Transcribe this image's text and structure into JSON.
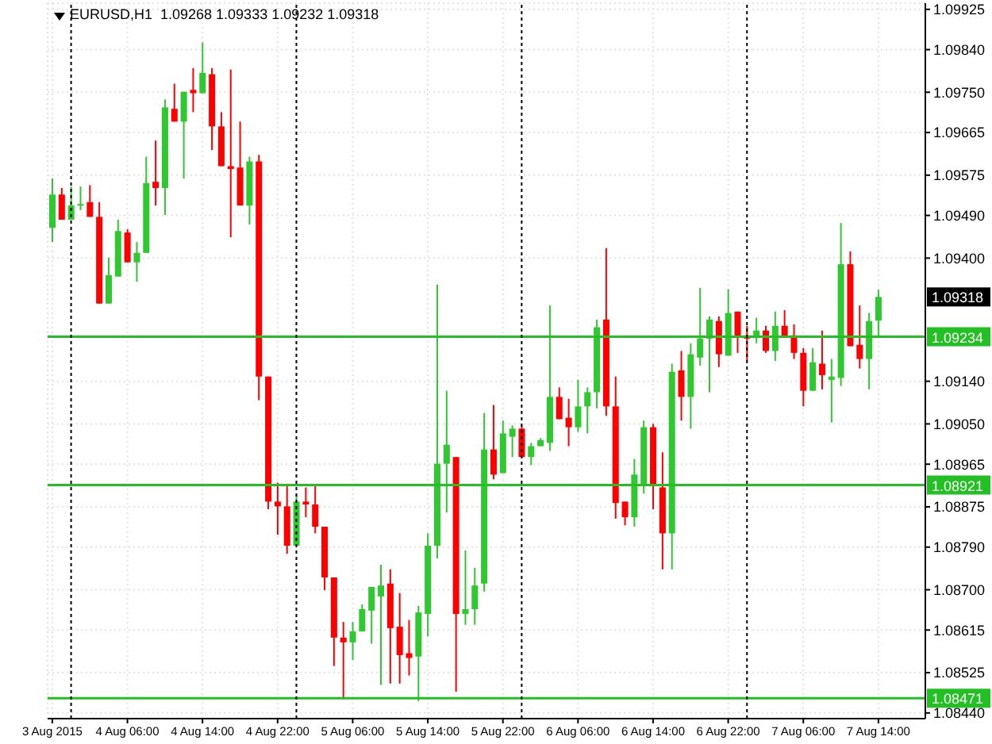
{
  "chart_data": {
    "type": "candlestick",
    "title": "EURUSD,H1  1.09268 1.09333 1.09232 1.09318",
    "x": [
      "2015-08-03T22:00",
      "2015-08-03T23:00",
      "2015-08-04T00:00",
      "2015-08-04T01:00",
      "2015-08-04T02:00",
      "2015-08-04T03:00",
      "2015-08-04T04:00",
      "2015-08-04T05:00",
      "2015-08-04T06:00",
      "2015-08-04T07:00",
      "2015-08-04T08:00",
      "2015-08-04T09:00",
      "2015-08-04T10:00",
      "2015-08-04T11:00",
      "2015-08-04T12:00",
      "2015-08-04T13:00",
      "2015-08-04T14:00",
      "2015-08-04T15:00",
      "2015-08-04T16:00",
      "2015-08-04T17:00",
      "2015-08-04T18:00",
      "2015-08-04T19:00",
      "2015-08-04T20:00",
      "2015-08-04T21:00",
      "2015-08-04T22:00",
      "2015-08-04T23:00",
      "2015-08-05T00:00",
      "2015-08-05T01:00",
      "2015-08-05T02:00",
      "2015-08-05T03:00",
      "2015-08-05T04:00",
      "2015-08-05T05:00",
      "2015-08-05T06:00",
      "2015-08-05T07:00",
      "2015-08-05T08:00",
      "2015-08-05T09:00",
      "2015-08-05T10:00",
      "2015-08-05T11:00",
      "2015-08-05T12:00",
      "2015-08-05T13:00",
      "2015-08-05T14:00",
      "2015-08-05T15:00",
      "2015-08-05T16:00",
      "2015-08-05T17:00",
      "2015-08-05T18:00",
      "2015-08-05T19:00",
      "2015-08-05T20:00",
      "2015-08-05T21:00",
      "2015-08-05T22:00",
      "2015-08-05T23:00",
      "2015-08-06T00:00",
      "2015-08-06T01:00",
      "2015-08-06T02:00",
      "2015-08-06T03:00",
      "2015-08-06T04:00",
      "2015-08-06T05:00",
      "2015-08-06T06:00",
      "2015-08-06T07:00",
      "2015-08-06T08:00",
      "2015-08-06T09:00",
      "2015-08-06T10:00",
      "2015-08-06T11:00",
      "2015-08-06T12:00",
      "2015-08-06T13:00",
      "2015-08-06T14:00",
      "2015-08-06T15:00",
      "2015-08-06T16:00",
      "2015-08-06T17:00",
      "2015-08-06T18:00",
      "2015-08-06T19:00",
      "2015-08-06T20:00",
      "2015-08-06T21:00",
      "2015-08-06T22:00",
      "2015-08-06T23:00",
      "2015-08-07T00:00",
      "2015-08-07T01:00",
      "2015-08-07T02:00",
      "2015-08-07T03:00",
      "2015-08-07T04:00",
      "2015-08-07T05:00",
      "2015-08-07T06:00",
      "2015-08-07T07:00",
      "2015-08-07T08:00",
      "2015-08-07T09:00",
      "2015-08-07T10:00",
      "2015-08-07T11:00",
      "2015-08-07T12:00",
      "2015-08-07T13:00",
      "2015-08-07T14:00"
    ],
    "ohlc": [
      [
        1.09464,
        1.09568,
        1.09434,
        1.09534
      ],
      [
        1.09534,
        1.09548,
        1.09481,
        1.09481
      ],
      [
        1.09481,
        1.09551,
        1.09481,
        1.09511
      ],
      [
        1.09511,
        1.09551,
        1.09501,
        1.09514
      ],
      [
        1.09518,
        1.09554,
        1.09487,
        1.09487
      ],
      [
        1.09487,
        1.09518,
        1.09304,
        1.09304
      ],
      [
        1.09304,
        1.09401,
        1.09304,
        1.09364
      ],
      [
        1.09361,
        1.09481,
        1.09361,
        1.09457
      ],
      [
        1.09454,
        1.09461,
        1.09391,
        1.09391
      ],
      [
        1.09391,
        1.09434,
        1.0935,
        1.09411
      ],
      [
        1.09411,
        1.09614,
        1.09411,
        1.09558
      ],
      [
        1.09561,
        1.09648,
        1.09511,
        1.09548
      ],
      [
        1.09548,
        1.09735,
        1.09491,
        1.09718
      ],
      [
        1.09715,
        1.09768,
        1.09688,
        1.09688
      ],
      [
        1.09688,
        1.09751,
        1.09568,
        1.09751
      ],
      [
        1.09755,
        1.09801,
        1.09708,
        1.09748
      ],
      [
        1.09748,
        1.09855,
        1.09748,
        1.09791
      ],
      [
        1.09788,
        1.09801,
        1.09628,
        1.09678
      ],
      [
        1.09678,
        1.09708,
        1.09594,
        1.09594
      ],
      [
        1.09594,
        1.09798,
        1.09444,
        1.09588
      ],
      [
        1.09591,
        1.09688,
        1.09511,
        1.09511
      ],
      [
        1.09511,
        1.09614,
        1.09471,
        1.09604
      ],
      [
        1.09604,
        1.09618,
        1.091,
        1.0915
      ],
      [
        1.0915,
        1.0915,
        1.0887,
        1.08886
      ],
      [
        1.08886,
        1.08926,
        1.08816,
        1.08876
      ],
      [
        1.08876,
        1.0892,
        1.08776,
        1.08793
      ],
      [
        1.08793,
        1.089,
        1.08793,
        1.08886
      ],
      [
        1.08886,
        1.08916,
        1.08853,
        1.0888
      ],
      [
        1.0888,
        1.08923,
        1.08819,
        1.08833
      ],
      [
        1.08833,
        1.08833,
        1.08699,
        1.08726
      ],
      [
        1.08726,
        1.08726,
        1.08539,
        1.08599
      ],
      [
        1.08599,
        1.08632,
        1.08469,
        1.08589
      ],
      [
        1.08589,
        1.08632,
        1.08552,
        1.08612
      ],
      [
        1.08612,
        1.08669,
        1.08612,
        1.08659
      ],
      [
        1.08656,
        1.08706,
        1.08586,
        1.08706
      ],
      [
        1.08686,
        1.08753,
        1.08499,
        1.08709
      ],
      [
        1.08713,
        1.08743,
        1.08502,
        1.08619
      ],
      [
        1.08622,
        1.08693,
        1.08502,
        1.08562
      ],
      [
        1.08566,
        1.08636,
        1.08519,
        1.08556
      ],
      [
        1.08559,
        1.08666,
        1.08465,
        1.08652
      ],
      [
        1.08649,
        1.08819,
        1.08602,
        1.08793
      ],
      [
        1.08793,
        1.09344,
        1.08766,
        1.08966
      ],
      [
        1.08966,
        1.0912,
        1.08863,
        1.09006
      ],
      [
        1.0898,
        1.0898,
        1.08485,
        1.08649
      ],
      [
        1.08649,
        1.08783,
        1.08626,
        1.08659
      ],
      [
        1.08659,
        1.08746,
        1.08626,
        1.08709
      ],
      [
        1.08713,
        1.09073,
        1.08696,
        1.08996
      ],
      [
        1.08996,
        1.0909,
        1.08933,
        1.08943
      ],
      [
        1.08946,
        1.09057,
        1.08946,
        1.0903
      ],
      [
        1.09023,
        1.09047,
        1.0898,
        1.0904
      ],
      [
        1.0904,
        1.09047,
        1.0898,
        1.0898
      ],
      [
        1.0898,
        1.0901,
        1.08963,
        1.09003
      ],
      [
        1.09003,
        1.0902,
        1.09003,
        1.09016
      ],
      [
        1.0901,
        1.093,
        1.08993,
        1.09107
      ],
      [
        1.09107,
        1.09127,
        1.0906,
        1.0906
      ],
      [
        1.09063,
        1.09103,
        1.09003,
        1.09043
      ],
      [
        1.09043,
        1.09143,
        1.09033,
        1.09087
      ],
      [
        1.09087,
        1.09127,
        1.0903,
        1.09117
      ],
      [
        1.09117,
        1.0927,
        1.09083,
        1.09254
      ],
      [
        1.0927,
        1.09421,
        1.09067,
        1.09087
      ],
      [
        1.09087,
        1.0915,
        1.0885,
        1.08883
      ],
      [
        1.08886,
        1.08886,
        1.08836,
        1.08853
      ],
      [
        1.08853,
        1.08976,
        1.08833,
        1.08943
      ],
      [
        1.0892,
        1.09057,
        1.08903,
        1.09043
      ],
      [
        1.09043,
        1.0905,
        1.0887,
        1.0892
      ],
      [
        1.08916,
        1.0899,
        1.08743,
        1.08819
      ],
      [
        1.08819,
        1.09177,
        1.08743,
        1.0916
      ],
      [
        1.09163,
        1.09204,
        1.09057,
        1.09107
      ],
      [
        1.09107,
        1.0922,
        1.0904,
        1.09197
      ],
      [
        1.0919,
        1.09337,
        1.09173,
        1.0923
      ],
      [
        1.0923,
        1.09277,
        1.09117,
        1.0927
      ],
      [
        1.09267,
        1.09277,
        1.0917,
        1.09197
      ],
      [
        1.09194,
        1.09334,
        1.09194,
        1.09284
      ],
      [
        1.09287,
        1.09287,
        1.092,
        1.09234
      ],
      [
        1.09237,
        1.09257,
        1.09183,
        1.0923
      ],
      [
        1.09234,
        1.09274,
        1.0922,
        1.09247
      ],
      [
        1.09247,
        1.09257,
        1.092,
        1.09204
      ],
      [
        1.09204,
        1.09287,
        1.09183,
        1.09257
      ],
      [
        1.09257,
        1.0929,
        1.09234,
        1.09234
      ],
      [
        1.09237,
        1.0926,
        1.09187,
        1.092
      ],
      [
        1.092,
        1.0921,
        1.09087,
        1.0912
      ],
      [
        1.0912,
        1.0921,
        1.0912,
        1.0918
      ],
      [
        1.09177,
        1.09247,
        1.09123,
        1.09153
      ],
      [
        1.09143,
        1.09187,
        1.09053,
        1.0915
      ],
      [
        1.09147,
        1.09474,
        1.0913,
        1.09387
      ],
      [
        1.09387,
        1.09414,
        1.09214,
        1.09214
      ],
      [
        1.09217,
        1.093,
        1.09167,
        1.09187
      ],
      [
        1.09187,
        1.09284,
        1.09123,
        1.09267
      ],
      [
        1.09268,
        1.09333,
        1.09232,
        1.09318
      ]
    ],
    "colors": [
      "#30c830",
      "#ff0000",
      "#30c830",
      "#30c830",
      "#ff0000",
      "#ff0000",
      "#30c830",
      "#30c830",
      "#ff0000",
      "#30c830",
      "#30c830",
      "#ff0000",
      "#30c830",
      "#ff0000",
      "#30c830",
      "#ff0000",
      "#30c830",
      "#ff0000",
      "#ff0000",
      "#ff0000",
      "#ff0000",
      "#30c830",
      "#ff0000",
      "#ff0000",
      "#ff0000",
      "#ff0000",
      "#30c830",
      "#ff0000",
      "#ff0000",
      "#ff0000",
      "#ff0000",
      "#ff0000",
      "#30c830",
      "#30c830",
      "#30c830",
      "#30c830",
      "#ff0000",
      "#ff0000",
      "#ff0000",
      "#30c830",
      "#30c830",
      "#30c830",
      "#30c830",
      "#ff0000",
      "#30c830",
      "#30c830",
      "#30c830",
      "#ff0000",
      "#30c830",
      "#30c830",
      "#ff0000",
      "#30c830",
      "#30c830",
      "#30c830",
      "#ff0000",
      "#ff0000",
      "#30c830",
      "#30c830",
      "#30c830",
      "#ff0000",
      "#ff0000",
      "#ff0000",
      "#30c830",
      "#30c830",
      "#ff0000",
      "#ff0000",
      "#30c830",
      "#ff0000",
      "#30c830",
      "#30c830",
      "#30c830",
      "#ff0000",
      "#30c830",
      "#ff0000",
      "#ff0000",
      "#30c830",
      "#ff0000",
      "#30c830",
      "#ff0000",
      "#ff0000",
      "#ff0000",
      "#30c830",
      "#ff0000",
      "#30c830",
      "#30c830",
      "#ff0000",
      "#ff0000",
      "#30c830",
      "#30c830"
    ],
    "xlim": [
      "2015-08-03T21:30",
      "2015-08-07T19:00"
    ],
    "xticks": [
      {
        "value": "2015-08-03T22:00",
        "label": "3 Aug 2015"
      },
      {
        "value": "2015-08-04T06:00",
        "label": "4 Aug 06:00"
      },
      {
        "value": "2015-08-04T14:00",
        "label": "4 Aug 14:00"
      },
      {
        "value": "2015-08-04T22:00",
        "label": "4 Aug 22:00"
      },
      {
        "value": "2015-08-05T06:00",
        "label": "5 Aug 06:00"
      },
      {
        "value": "2015-08-05T14:00",
        "label": "5 Aug 14:00"
      },
      {
        "value": "2015-08-05T22:00",
        "label": "5 Aug 22:00"
      },
      {
        "value": "2015-08-06T06:00",
        "label": "6 Aug 06:00"
      },
      {
        "value": "2015-08-06T14:00",
        "label": "6 Aug 14:00"
      },
      {
        "value": "2015-08-06T22:00",
        "label": "6 Aug 22:00"
      },
      {
        "value": "2015-08-07T06:00",
        "label": "7 Aug 06:00"
      },
      {
        "value": "2015-08-07T14:00",
        "label": "7 Aug 14:00"
      }
    ],
    "ylim": [
      1.08428,
      1.09938
    ],
    "yticks": [
      1.09925,
      {
        "value": 1.0984,
        "label": "1.09840"
      },
      {
        "value": 1.0975,
        "label": "1.09750"
      },
      1.09665,
      1.09575,
      {
        "value": 1.0949,
        "label": "1.09490"
      },
      {
        "value": 1.094,
        "label": "1.09400"
      },
      {
        "value": 1.0914,
        "label": "1.09140"
      },
      {
        "value": 1.0905,
        "label": "1.09050"
      },
      1.08965,
      1.08875,
      {
        "value": 1.0879,
        "label": "1.08790"
      },
      {
        "value": 1.087,
        "label": "1.08700"
      },
      1.08615,
      1.08525,
      {
        "value": 1.0844,
        "label": "1.08440"
      }
    ],
    "grid": true,
    "ref_lines": [
      {
        "axis": "y",
        "value": 1.09234,
        "label": "1.09234",
        "color": "#22c022"
      },
      {
        "axis": "y",
        "value": 1.08921,
        "label": "1.08921",
        "color": "#22c022"
      },
      {
        "axis": "y",
        "value": 1.08471,
        "label": "1.08471",
        "color": "#22c022"
      },
      {
        "axis": "x",
        "value": "2015-08-04T00:00",
        "color": "#000000",
        "line_style": "dotted"
      },
      {
        "axis": "x",
        "value": "2015-08-05T00:00",
        "color": "#000000",
        "line_style": "dotted"
      },
      {
        "axis": "x",
        "value": "2015-08-06T00:00",
        "color": "#000000",
        "line_style": "dotted"
      },
      {
        "axis": "x",
        "value": "2015-08-07T00:00",
        "color": "#000000",
        "line_style": "dotted"
      }
    ],
    "annotations": [
      {
        "text": "1.09318",
        "y": 1.09318
      }
    ]
  }
}
